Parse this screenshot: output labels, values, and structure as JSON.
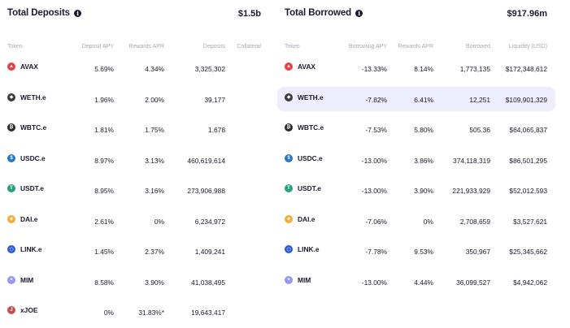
{
  "deposits": {
    "title": "Total Deposits",
    "total": "$1.5b",
    "headers": {
      "token": "Token",
      "deposit_apy": "Deposit APY",
      "rewards_apr": "Rewards APR",
      "deposits": "Deposits",
      "collateral": "Collateral"
    },
    "rows": [
      {
        "token": "AVAX",
        "icon": "avax-icon",
        "color": "#e84142",
        "deposit_apy": "5.69%",
        "rewards_apr": "4.34%",
        "deposits": "3,325,302"
      },
      {
        "token": "WETH.e",
        "icon": "weth-icon",
        "color": "#3c3c3d",
        "deposit_apy": "1.96%",
        "rewards_apr": "2.00%",
        "deposits": "39,177"
      },
      {
        "token": "WBTC.e",
        "icon": "wbtc-icon",
        "color": "#2b2b2b",
        "deposit_apy": "1.81%",
        "rewards_apr": "1.75%",
        "deposits": "1,678"
      },
      {
        "token": "USDC.e",
        "icon": "usdc-icon",
        "color": "#2775ca",
        "deposit_apy": "8.97%",
        "rewards_apr": "3.13%",
        "deposits": "460,619,614"
      },
      {
        "token": "USDT.e",
        "icon": "usdt-icon",
        "color": "#26a17b",
        "deposit_apy": "8.95%",
        "rewards_apr": "3.16%",
        "deposits": "273,906,988"
      },
      {
        "token": "DAI.e",
        "icon": "dai-icon",
        "color": "#f5ac37",
        "deposit_apy": "2.61%",
        "rewards_apr": "0%",
        "deposits": "6,234,972"
      },
      {
        "token": "LINK.e",
        "icon": "link-icon",
        "color": "#2a5ada",
        "deposit_apy": "1.45%",
        "rewards_apr": "2.37%",
        "deposits": "1,409,241"
      },
      {
        "token": "MIM",
        "icon": "mim-icon",
        "color": "#9695f8",
        "deposit_apy": "8.58%",
        "rewards_apr": "3.90%",
        "deposits": "41,038,495"
      },
      {
        "token": "xJOE",
        "icon": "xjoe-icon",
        "color": "#c54d4d",
        "deposit_apy": "0%",
        "rewards_apr": "31.83%*",
        "deposits": "19,643,417"
      }
    ]
  },
  "borrowed": {
    "title": "Total Borrowed",
    "total": "$917.96m",
    "headers": {
      "token": "Token",
      "borrowing_apy": "Borrowing APY",
      "rewards_apr": "Rewards APR",
      "borrowed": "Borrowed",
      "liquidity": "Liquidity (USD)"
    },
    "rows": [
      {
        "token": "AVAX",
        "icon": "avax-icon",
        "color": "#e84142",
        "borrowing_apy": "-13.33%",
        "rewards_apr": "8.14%",
        "borrowed": "1,773,135",
        "liquidity": "$172,348,612"
      },
      {
        "token": "WETH.e",
        "icon": "weth-icon",
        "color": "#3c3c3d",
        "borrowing_apy": "-7.82%",
        "rewards_apr": "6.41%",
        "borrowed": "12,251",
        "liquidity": "$109,901,329"
      },
      {
        "token": "WBTC.e",
        "icon": "wbtc-icon",
        "color": "#2b2b2b",
        "borrowing_apy": "-7.53%",
        "rewards_apr": "5.80%",
        "borrowed": "505.36",
        "liquidity": "$64,065,837"
      },
      {
        "token": "USDC.e",
        "icon": "usdc-icon",
        "color": "#2775ca",
        "borrowing_apy": "-13.00%",
        "rewards_apr": "3.86%",
        "borrowed": "374,118,319",
        "liquidity": "$86,501,295"
      },
      {
        "token": "USDT.e",
        "icon": "usdt-icon",
        "color": "#26a17b",
        "borrowing_apy": "-13.00%",
        "rewards_apr": "3.90%",
        "borrowed": "221,933,929",
        "liquidity": "$52,012,593"
      },
      {
        "token": "DAI.e",
        "icon": "dai-icon",
        "color": "#f5ac37",
        "borrowing_apy": "-7.06%",
        "rewards_apr": "0%",
        "borrowed": "2,708,659",
        "liquidity": "$3,527,621"
      },
      {
        "token": "LINK.e",
        "icon": "link-icon",
        "color": "#2a5ada",
        "borrowing_apy": "-7.78%",
        "rewards_apr": "9.53%",
        "borrowed": "350,967",
        "liquidity": "$25,345,662"
      },
      {
        "token": "MIM",
        "icon": "mim-icon",
        "color": "#9695f8",
        "borrowing_apy": "-13.00%",
        "rewards_apr": "4.44%",
        "borrowed": "36,099,527",
        "liquidity": "$4,942,062"
      }
    ],
    "highlighted_row": 1
  },
  "icons": {
    "info": "info-icon"
  }
}
